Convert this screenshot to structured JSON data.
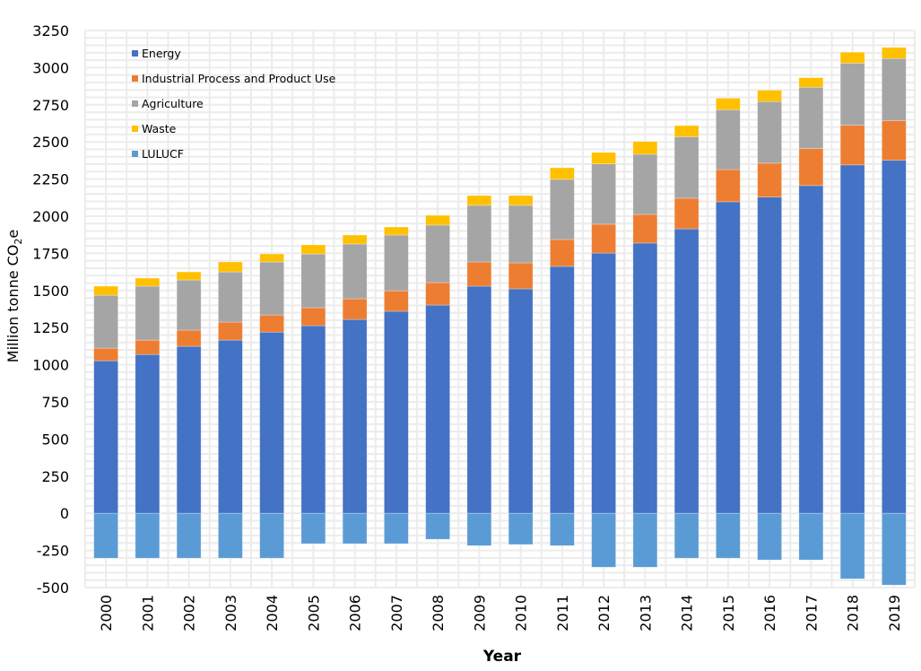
{
  "chart_data": {
    "type": "bar",
    "stacked": true,
    "title": "",
    "xlabel": "Year",
    "ylabel": "Million tonne CO",
    "ylabel_sub": "2",
    "ylabel_suffix": "e",
    "ylim": [
      -500,
      3250
    ],
    "yticks": [
      -500,
      -250,
      0,
      250,
      500,
      750,
      1000,
      1250,
      1500,
      1750,
      2000,
      2250,
      2500,
      2750,
      3000,
      3250
    ],
    "grid": true,
    "legend_position": "top-left",
    "categories": [
      "2000",
      "2001",
      "2002",
      "2003",
      "2004",
      "2005",
      "2006",
      "2007",
      "2008",
      "2009",
      "2010",
      "2011",
      "2012",
      "2013",
      "2014",
      "2015",
      "2016",
      "2017",
      "2018",
      "2019"
    ],
    "series": [
      {
        "name": "Energy",
        "color": "#4472C4",
        "values": [
          1027,
          1069,
          1124,
          1166,
          1220,
          1263,
          1305,
          1360,
          1402,
          1529,
          1511,
          1662,
          1752,
          1819,
          1915,
          2097,
          2129,
          2206,
          2345,
          2377
        ]
      },
      {
        "name": "Industrial Process and Product Use",
        "color": "#ED7D31",
        "values": [
          85,
          97,
          109,
          121,
          115,
          121,
          139,
          138,
          151,
          163,
          175,
          181,
          194,
          193,
          206,
          217,
          228,
          249,
          267,
          266
        ]
      },
      {
        "name": "Agriculture",
        "color": "#A5A5A5",
        "values": [
          356,
          363,
          338,
          338,
          357,
          362,
          369,
          375,
          387,
          381,
          387,
          405,
          406,
          405,
          414,
          403,
          415,
          413,
          418,
          419
        ]
      },
      {
        "name": "Waste",
        "color": "#FFC000",
        "values": [
          61,
          54,
          54,
          67,
          54,
          61,
          60,
          54,
          66,
          66,
          66,
          78,
          77,
          86,
          75,
          77,
          76,
          64,
          74,
          74
        ]
      },
      {
        "name": "LULUCF",
        "color": "#5B9BD5",
        "values": [
          -302,
          -302,
          -302,
          -302,
          -302,
          -205,
          -205,
          -205,
          -175,
          -218,
          -210,
          -218,
          -363,
          -363,
          -302,
          -302,
          -314,
          -314,
          -441,
          -483
        ]
      }
    ]
  }
}
